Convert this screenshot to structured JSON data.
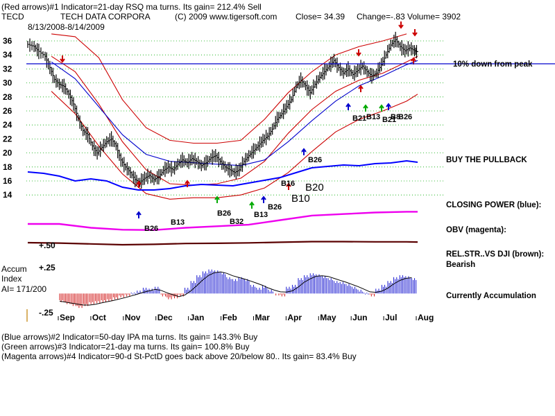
{
  "header": {
    "line1": "(Red arrows)#1 Indicator=21-day RSQ ma turns.  Its gain= 212.4% Sell",
    "ticker": "TECD",
    "company": "TECH DATA CORPORA",
    "copyright": "(C) 2009 www.tigersoft.com",
    "close": "Close=  34.39",
    "change": "Change=-.83",
    "volume": "Volume=  3902",
    "date_range": "8/13/2008-8/14/2009"
  },
  "right_labels": {
    "peak_line": "10% down from peak",
    "pullback": "BUY THE PULLBACK",
    "closing_power": "CLOSING POWER (blue):",
    "obv": "OBV (magenta):",
    "relstr": "REL.STR..VS DJI (brown):",
    "relstr_status": "Bearish",
    "accum_status": "Currently Accumulation"
  },
  "accum_panel": {
    "title1": "Accum",
    "title2": "Index",
    "ai": "AI= 171/200",
    "plus50": "+.50",
    "plus25": "+.25",
    "minus25": "-.25"
  },
  "footer": {
    "line1": "(Blue arrows)#2 Indicator=50-day IPA ma turns.  Its gain= 143.3% Buy",
    "line2": "(Green arrows)#3 Indicator=21-day ma turns.  Its gain= 100.8% Buy",
    "line3": "(Magenta arrows)#4 Indicator=90-d St-PctD goes back above 20/below 80..  Its gain= 83.4% Buy"
  },
  "chart_data": {
    "type": "line",
    "ylim": [
      13,
      37
    ],
    "y_ticks": [
      14,
      16,
      18,
      20,
      22,
      24,
      26,
      28,
      30,
      32,
      34,
      36
    ],
    "x_ticks": [
      "Sep",
      "Oct",
      "Nov",
      "Dec",
      "Jan",
      "Feb",
      "Mar",
      "Apr",
      "May",
      "Jun",
      "Jul",
      "Aug"
    ],
    "price_series": [
      {
        "x": 0,
        "y": 35.5
      },
      {
        "x": 8,
        "y": 35.2
      },
      {
        "x": 14,
        "y": 34.5
      },
      {
        "x": 22,
        "y": 33.8
      },
      {
        "x": 28,
        "y": 32.2
      },
      {
        "x": 34,
        "y": 30.5
      },
      {
        "x": 40,
        "y": 29.8
      },
      {
        "x": 46,
        "y": 29.5
      },
      {
        "x": 52,
        "y": 28.4
      },
      {
        "x": 58,
        "y": 27.0
      },
      {
        "x": 64,
        "y": 25.0
      },
      {
        "x": 70,
        "y": 23.2
      },
      {
        "x": 76,
        "y": 22.6
      },
      {
        "x": 82,
        "y": 21.0
      },
      {
        "x": 88,
        "y": 20.0
      },
      {
        "x": 94,
        "y": 20.8
      },
      {
        "x": 100,
        "y": 21.6
      },
      {
        "x": 106,
        "y": 22.0
      },
      {
        "x": 112,
        "y": 21.0
      },
      {
        "x": 118,
        "y": 19.0
      },
      {
        "x": 124,
        "y": 18.0
      },
      {
        "x": 130,
        "y": 17.2
      },
      {
        "x": 136,
        "y": 16.2
      },
      {
        "x": 142,
        "y": 15.8
      },
      {
        "x": 148,
        "y": 16.4
      },
      {
        "x": 154,
        "y": 16.8
      },
      {
        "x": 160,
        "y": 16.2
      },
      {
        "x": 166,
        "y": 16.6
      },
      {
        "x": 172,
        "y": 17.5
      },
      {
        "x": 178,
        "y": 18.0
      },
      {
        "x": 184,
        "y": 17.6
      },
      {
        "x": 190,
        "y": 18.4
      },
      {
        "x": 196,
        "y": 19.0
      },
      {
        "x": 202,
        "y": 18.6
      },
      {
        "x": 208,
        "y": 19.2
      },
      {
        "x": 214,
        "y": 18.8
      },
      {
        "x": 220,
        "y": 18.2
      },
      {
        "x": 226,
        "y": 18.6
      },
      {
        "x": 232,
        "y": 19.3
      },
      {
        "x": 238,
        "y": 19.6
      },
      {
        "x": 244,
        "y": 18.8
      },
      {
        "x": 250,
        "y": 18.0
      },
      {
        "x": 256,
        "y": 17.6
      },
      {
        "x": 262,
        "y": 17.2
      },
      {
        "x": 268,
        "y": 17.6
      },
      {
        "x": 274,
        "y": 18.8
      },
      {
        "x": 280,
        "y": 19.6
      },
      {
        "x": 286,
        "y": 20.3
      },
      {
        "x": 292,
        "y": 21.0
      },
      {
        "x": 298,
        "y": 21.8
      },
      {
        "x": 304,
        "y": 22.4
      },
      {
        "x": 310,
        "y": 23.4
      },
      {
        "x": 316,
        "y": 24.8
      },
      {
        "x": 322,
        "y": 25.6
      },
      {
        "x": 328,
        "y": 26.6
      },
      {
        "x": 334,
        "y": 27.6
      },
      {
        "x": 340,
        "y": 29.4
      },
      {
        "x": 346,
        "y": 30.4
      },
      {
        "x": 352,
        "y": 29.6
      },
      {
        "x": 358,
        "y": 28.6
      },
      {
        "x": 364,
        "y": 29.8
      },
      {
        "x": 370,
        "y": 30.8
      },
      {
        "x": 376,
        "y": 31.6
      },
      {
        "x": 382,
        "y": 32.4
      },
      {
        "x": 388,
        "y": 33.2
      },
      {
        "x": 394,
        "y": 32.2
      },
      {
        "x": 400,
        "y": 31.4
      },
      {
        "x": 406,
        "y": 32.0
      },
      {
        "x": 412,
        "y": 31.2
      },
      {
        "x": 418,
        "y": 31.8
      },
      {
        "x": 424,
        "y": 32.4
      },
      {
        "x": 430,
        "y": 31.6
      },
      {
        "x": 436,
        "y": 31.0
      },
      {
        "x": 442,
        "y": 31.4
      },
      {
        "x": 448,
        "y": 32.6
      },
      {
        "x": 454,
        "y": 34.0
      },
      {
        "x": 460,
        "y": 35.4
      },
      {
        "x": 466,
        "y": 36.2
      },
      {
        "x": 472,
        "y": 35.2
      },
      {
        "x": 478,
        "y": 34.6
      },
      {
        "x": 484,
        "y": 35.0
      },
      {
        "x": 490,
        "y": 34.6
      },
      {
        "x": 494,
        "y": 34.4
      }
    ],
    "ma50": [
      {
        "x": 30,
        "y": 33.0
      },
      {
        "x": 60,
        "y": 30.6
      },
      {
        "x": 90,
        "y": 26.6
      },
      {
        "x": 120,
        "y": 22.6
      },
      {
        "x": 150,
        "y": 19.8
      },
      {
        "x": 180,
        "y": 18.8
      },
      {
        "x": 210,
        "y": 18.6
      },
      {
        "x": 240,
        "y": 18.4
      },
      {
        "x": 270,
        "y": 18.2
      },
      {
        "x": 300,
        "y": 19.0
      },
      {
        "x": 330,
        "y": 21.6
      },
      {
        "x": 360,
        "y": 24.6
      },
      {
        "x": 390,
        "y": 27.4
      },
      {
        "x": 420,
        "y": 29.6
      },
      {
        "x": 450,
        "y": 31.0
      },
      {
        "x": 480,
        "y": 32.6
      },
      {
        "x": 494,
        "y": 33.2
      }
    ],
    "band_upper": [
      {
        "x": 30,
        "y": 37.0
      },
      {
        "x": 60,
        "y": 36.6
      },
      {
        "x": 90,
        "y": 33.6
      },
      {
        "x": 120,
        "y": 27.6
      },
      {
        "x": 150,
        "y": 23.6
      },
      {
        "x": 180,
        "y": 21.8
      },
      {
        "x": 210,
        "y": 21.4
      },
      {
        "x": 240,
        "y": 21.4
      },
      {
        "x": 270,
        "y": 21.8
      },
      {
        "x": 300,
        "y": 24.8
      },
      {
        "x": 330,
        "y": 28.6
      },
      {
        "x": 360,
        "y": 31.6
      },
      {
        "x": 390,
        "y": 34.0
      },
      {
        "x": 420,
        "y": 35.2
      },
      {
        "x": 450,
        "y": 36.0
      },
      {
        "x": 480,
        "y": 37.0
      }
    ],
    "band_mid": [
      {
        "x": 30,
        "y": 33.8
      },
      {
        "x": 60,
        "y": 31.6
      },
      {
        "x": 90,
        "y": 27.0
      },
      {
        "x": 120,
        "y": 21.6
      },
      {
        "x": 150,
        "y": 17.6
      },
      {
        "x": 180,
        "y": 15.6
      },
      {
        "x": 210,
        "y": 15.4
      },
      {
        "x": 240,
        "y": 15.6
      },
      {
        "x": 270,
        "y": 16.4
      },
      {
        "x": 300,
        "y": 18.8
      },
      {
        "x": 330,
        "y": 22.8
      },
      {
        "x": 360,
        "y": 26.2
      },
      {
        "x": 390,
        "y": 28.8
      },
      {
        "x": 420,
        "y": 30.4
      },
      {
        "x": 450,
        "y": 31.4
      },
      {
        "x": 480,
        "y": 33.0
      },
      {
        "x": 494,
        "y": 33.8
      }
    ],
    "band_lower": [
      {
        "x": 30,
        "y": 28.8
      },
      {
        "x": 60,
        "y": 25.6
      },
      {
        "x": 90,
        "y": 21.0
      },
      {
        "x": 120,
        "y": 17.0
      },
      {
        "x": 150,
        "y": 14.2
      },
      {
        "x": 180,
        "y": 13.4
      },
      {
        "x": 210,
        "y": 13.6
      },
      {
        "x": 240,
        "y": 13.6
      },
      {
        "x": 270,
        "y": 14.0
      },
      {
        "x": 300,
        "y": 15.0
      },
      {
        "x": 330,
        "y": 17.2
      },
      {
        "x": 360,
        "y": 20.2
      },
      {
        "x": 390,
        "y": 23.0
      },
      {
        "x": 420,
        "y": 24.8
      },
      {
        "x": 450,
        "y": 26.0
      },
      {
        "x": 480,
        "y": 27.4
      },
      {
        "x": 494,
        "y": 28.4
      }
    ],
    "peak_line_level": 32.6,
    "closing_power": [
      {
        "x": 0,
        "y": 0.82
      },
      {
        "x": 20,
        "y": 0.8
      },
      {
        "x": 40,
        "y": 0.76
      },
      {
        "x": 60,
        "y": 0.69
      },
      {
        "x": 80,
        "y": 0.72
      },
      {
        "x": 100,
        "y": 0.69
      },
      {
        "x": 120,
        "y": 0.6
      },
      {
        "x": 140,
        "y": 0.56
      },
      {
        "x": 160,
        "y": 0.56
      },
      {
        "x": 180,
        "y": 0.58
      },
      {
        "x": 200,
        "y": 0.62
      },
      {
        "x": 220,
        "y": 0.64
      },
      {
        "x": 240,
        "y": 0.63
      },
      {
        "x": 260,
        "y": 0.62
      },
      {
        "x": 280,
        "y": 0.66
      },
      {
        "x": 300,
        "y": 0.7
      },
      {
        "x": 320,
        "y": 0.74
      },
      {
        "x": 340,
        "y": 0.81
      },
      {
        "x": 360,
        "y": 0.88
      },
      {
        "x": 380,
        "y": 0.9
      },
      {
        "x": 400,
        "y": 0.92
      },
      {
        "x": 420,
        "y": 0.91
      },
      {
        "x": 440,
        "y": 0.94
      },
      {
        "x": 460,
        "y": 0.95
      },
      {
        "x": 480,
        "y": 0.98
      },
      {
        "x": 494,
        "y": 0.96
      }
    ],
    "obv": [
      {
        "x": 0,
        "y": 0.4
      },
      {
        "x": 40,
        "y": 0.4
      },
      {
        "x": 80,
        "y": 0.3
      },
      {
        "x": 120,
        "y": 0.25
      },
      {
        "x": 160,
        "y": 0.24
      },
      {
        "x": 200,
        "y": 0.3
      },
      {
        "x": 240,
        "y": 0.34
      },
      {
        "x": 280,
        "y": 0.38
      },
      {
        "x": 320,
        "y": 0.5
      },
      {
        "x": 360,
        "y": 0.62
      },
      {
        "x": 400,
        "y": 0.66
      },
      {
        "x": 440,
        "y": 0.7
      },
      {
        "x": 480,
        "y": 0.72
      },
      {
        "x": 494,
        "y": 0.72
      }
    ],
    "rel_strength": [
      {
        "x": 0,
        "y": 0.5
      },
      {
        "x": 40,
        "y": 0.48
      },
      {
        "x": 80,
        "y": 0.44
      },
      {
        "x": 120,
        "y": 0.4
      },
      {
        "x": 160,
        "y": 0.42
      },
      {
        "x": 200,
        "y": 0.46
      },
      {
        "x": 240,
        "y": 0.47
      },
      {
        "x": 280,
        "y": 0.49
      },
      {
        "x": 320,
        "y": 0.52
      },
      {
        "x": 360,
        "y": 0.55
      },
      {
        "x": 400,
        "y": 0.55
      },
      {
        "x": 440,
        "y": 0.54
      },
      {
        "x": 480,
        "y": 0.54
      },
      {
        "x": 494,
        "y": 0.53
      }
    ],
    "accum_ylim": [
      -0.25,
      0.5
    ],
    "accum_bars": [
      -0.08,
      -0.1,
      -0.12,
      -0.14,
      -0.12,
      -0.1,
      -0.09,
      -0.08,
      -0.07,
      -0.05,
      -0.03,
      -0.02,
      0.0,
      0.02,
      0.05,
      0.04,
      0.06,
      -0.02,
      -0.05,
      -0.04,
      -0.02,
      0.05,
      0.12,
      0.18,
      0.22,
      0.24,
      0.23,
      0.21,
      0.16,
      0.14,
      0.16,
      0.14,
      0.08,
      0.05,
      0.07,
      0.03,
      -0.01,
      -0.02,
      0.06,
      0.08,
      0.15,
      0.18,
      0.2,
      0.19,
      0.17,
      0.15,
      0.12,
      0.11,
      0.09,
      0.06,
      0.03,
      0.0,
      -0.02,
      0.04,
      0.08,
      0.12,
      0.16,
      0.18,
      0.17,
      0.15
    ],
    "signals_blue": [
      "B26",
      "B13",
      "B26",
      "B26",
      "B13",
      "B21",
      "B26"
    ],
    "signals_green": [
      "B13",
      "B21"
    ],
    "signals_big": [
      "B20",
      "B10"
    ],
    "signals_misc": [
      "B16",
      "B32",
      "B26",
      "B8"
    ]
  }
}
